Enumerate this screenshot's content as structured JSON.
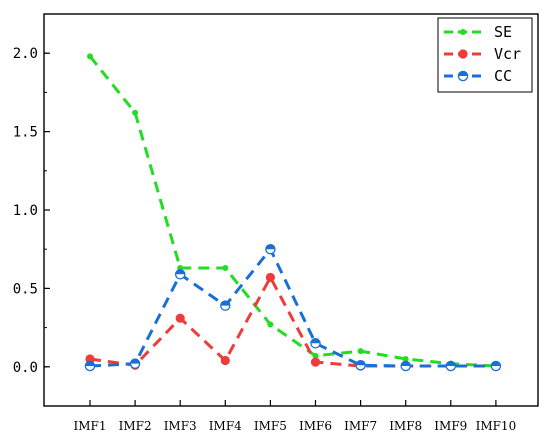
{
  "chart_data": {
    "type": "line",
    "categories": [
      "IMF1",
      "IMF2",
      "IMF3",
      "IMF4",
      "IMF5",
      "IMF6",
      "IMF7",
      "IMF8",
      "IMF9",
      "IMF10"
    ],
    "series": [
      {
        "name": "SE",
        "color": "#22dd22",
        "marker": "dot",
        "values": [
          1.98,
          1.62,
          0.63,
          0.63,
          0.27,
          0.07,
          0.1,
          0.05,
          0.02,
          0.005
        ]
      },
      {
        "name": "Vcr",
        "color": "#ee3b3b",
        "marker": "circle",
        "values": [
          0.05,
          0.01,
          0.31,
          0.04,
          0.57,
          0.03,
          0.005,
          0.005,
          0.005,
          0.005
        ]
      },
      {
        "name": "CC",
        "color": "#1a6fd6",
        "marker": "half-circle",
        "values": [
          0.005,
          0.02,
          0.59,
          0.39,
          0.75,
          0.15,
          0.01,
          0.005,
          0.005,
          0.005
        ]
      }
    ],
    "yticks": [
      "0.0",
      "0.5",
      "1.0",
      "1.5",
      "2.0"
    ],
    "ylim": [
      -0.25,
      2.25
    ],
    "grid": false,
    "legend_position": "top-right",
    "title": "",
    "xlabel": "",
    "ylabel": ""
  }
}
